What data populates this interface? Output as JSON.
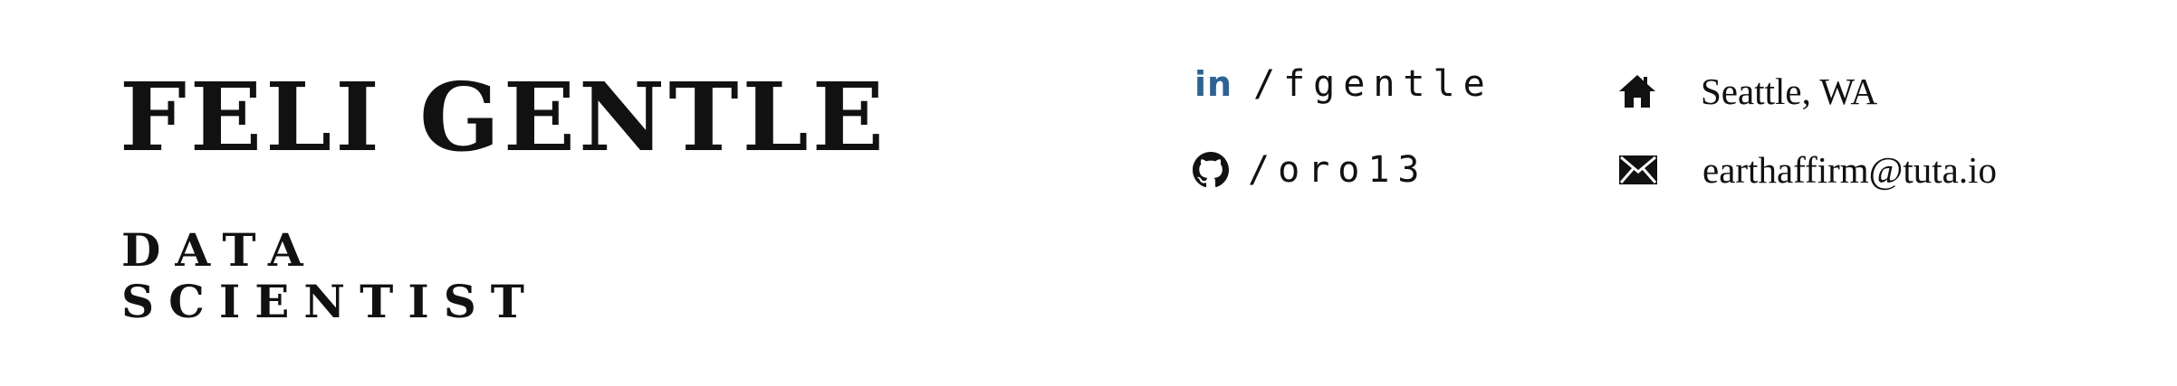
{
  "header": {
    "name": "FELI GENTLE",
    "title_line1": "DATA",
    "title_line2": "SCIENTIST"
  },
  "contacts": {
    "linkedin": {
      "icon": "linkedin-icon",
      "icon_text": "in",
      "text": "/fgentle",
      "color": "#2a6496"
    },
    "github": {
      "icon": "github-icon",
      "text": "/oro13"
    },
    "location": {
      "icon": "home-icon",
      "text": "Seattle, WA"
    },
    "email": {
      "icon": "mail-icon",
      "text": "earthaffirm@tuta.io"
    }
  }
}
